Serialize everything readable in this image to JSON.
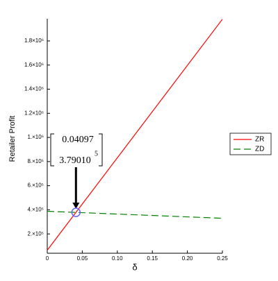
{
  "chart_data": {
    "type": "line",
    "x_label": "δ",
    "y_label": "Retailer Profit",
    "x": [
      0,
      0.25
    ],
    "series": [
      {
        "name": "ZR",
        "color": "#ff0000",
        "dash": "none",
        "values": [
          65000,
          1980000
        ]
      },
      {
        "name": "ZD",
        "color": "#008000",
        "dash": "10,5",
        "values": [
          388000,
          330000
        ]
      }
    ],
    "xlim": [
      0,
      0.25
    ],
    "ylim": [
      40000,
      1984000
    ],
    "xticks": [
      0,
      0.05,
      {
        "value": 0.1,
        "label": "0.10"
      },
      0.15,
      {
        "value": 0.2,
        "label": "0.20"
      },
      0.25
    ],
    "yticks": [
      {
        "value": 200000,
        "label": "2.×10⁵"
      },
      {
        "value": 400000,
        "label": "4.×10⁵"
      },
      {
        "value": 600000,
        "label": "6.×10⁵"
      },
      {
        "value": 800000,
        "label": "8.×10⁵"
      },
      {
        "value": 1000000,
        "label": "1.×10⁶"
      },
      {
        "value": 1200000,
        "label": "1.2×10⁶"
      },
      {
        "value": 1400000,
        "label": "1.4×10⁶"
      },
      {
        "value": 1600000,
        "label": "1.6×10⁶"
      },
      {
        "value": 1800000,
        "label": "1.8×10⁶"
      }
    ],
    "grid": false,
    "legend": "right",
    "annotation": {
      "x_text": "0.04097",
      "y_text": "3.79010",
      "y_exponent": "5",
      "point": {
        "x": 0.04097,
        "y": 379010
      },
      "marker_color": "#6666ff"
    }
  }
}
